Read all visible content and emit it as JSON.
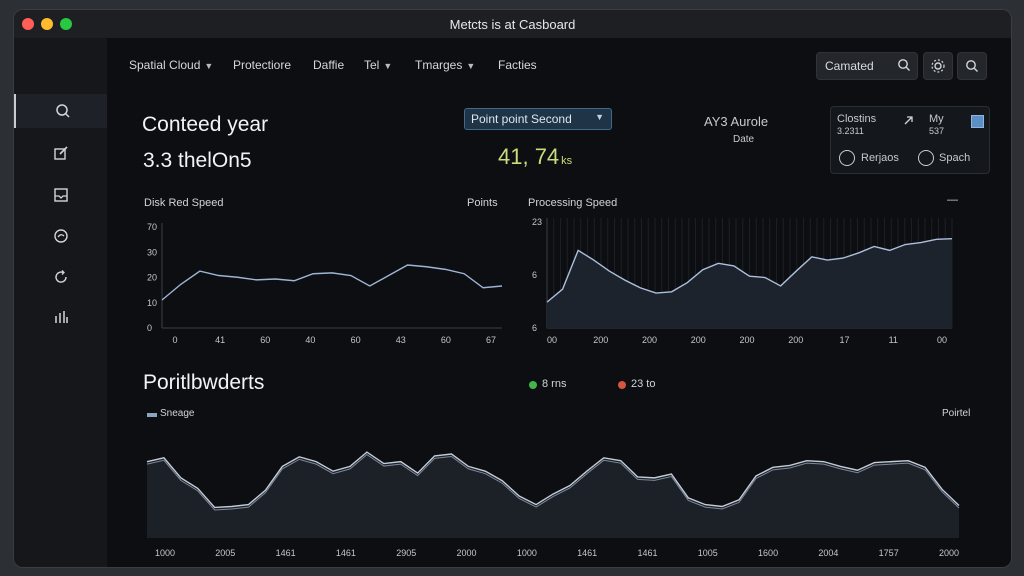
{
  "window": {
    "title": "Metcts is at Casboard",
    "controls": [
      {
        "name": "close",
        "color": "#ff5f57"
      },
      {
        "name": "minimize",
        "color": "#febc2e"
      },
      {
        "name": "maximize",
        "color": "#28c840"
      }
    ]
  },
  "sidebar": {
    "items": [
      {
        "name": "sidebar-item-search",
        "icon": "search-icon"
      },
      {
        "name": "sidebar-item-edit",
        "icon": "edit-icon"
      },
      {
        "name": "sidebar-item-inbox",
        "icon": "inbox-icon"
      },
      {
        "name": "sidebar-item-target",
        "icon": "target-icon"
      },
      {
        "name": "sidebar-item-refresh",
        "icon": "refresh-icon"
      },
      {
        "name": "sidebar-item-stats",
        "icon": "bar-chart-icon"
      }
    ]
  },
  "nav": {
    "items": [
      {
        "label": "Spatial Cloud",
        "dropdown": true
      },
      {
        "label": "Protectiore",
        "dropdown": false
      },
      {
        "label": "Daffie",
        "dropdown": false
      },
      {
        "label": "Tel",
        "dropdown": true
      },
      {
        "label": "Tmarges",
        "dropdown": true
      },
      {
        "label": "Facties",
        "dropdown": false
      }
    ],
    "search_value": "Camated",
    "icons": [
      "search-icon",
      "settings-icon",
      "search-icon"
    ]
  },
  "summary": {
    "heading": "Conteed year",
    "value": "3.3 thelOn5",
    "select_value": "Point point Second",
    "green_value": "41, 74",
    "green_unit": "ks",
    "aux_title": "AY3 Aurole",
    "aux_sub": "Date",
    "accent_green": "#c9dd7a"
  },
  "panel": {
    "label_a": "Clostins",
    "value_a": "3.2311",
    "label_b": "My",
    "value_b": "537",
    "radio_a": "Rerjaos",
    "radio_b": "Spach"
  },
  "chart_data": [
    {
      "type": "line",
      "title": "Disk Red Speed",
      "legend": "Points",
      "yticks": [
        "70",
        "30",
        "20",
        "10",
        "0"
      ],
      "xticks": [
        "0",
        "41",
        "60",
        "40",
        "60",
        "43",
        "60",
        "67"
      ],
      "color": "#9fb4d6",
      "values": [
        3.2,
        5,
        6.5,
        6,
        5.8,
        5.5,
        5.6,
        5.4,
        6.2,
        6.3,
        6,
        4.8,
        6,
        7.2,
        7,
        6.7,
        6.2,
        4.6,
        4.8
      ]
    },
    {
      "type": "area",
      "title": "Processing Speed",
      "yticks": [
        "23",
        "6",
        "6"
      ],
      "xticks": [
        "00",
        "200",
        "200",
        "200",
        "200",
        "200",
        "17",
        "11",
        "00"
      ],
      "color": "#aebfdc",
      "values": [
        4,
        6,
        12,
        10.5,
        8.8,
        7.4,
        6.2,
        5.4,
        5.6,
        7,
        9,
        10,
        9.6,
        8,
        7.8,
        6.5,
        8.8,
        11,
        10.5,
        10.8,
        11.6,
        12.6,
        12,
        12.9,
        13.2,
        13.7,
        13.8
      ]
    },
    {
      "type": "area",
      "title": "Poritlbwderts",
      "legend": "Sneage",
      "legend_right": "Poirtel",
      "legend_items": [
        {
          "label": "8 rns",
          "color": "#42b44a"
        },
        {
          "label": "23 to",
          "color": "#d45540"
        }
      ],
      "xticks": [
        "1000",
        "2005",
        "1461",
        "1461",
        "2905",
        "2000",
        "1000",
        "1461",
        "1461",
        "1005",
        "1600",
        "2004",
        "1757",
        "2000"
      ],
      "color": "#c3ccd8",
      "values": [
        8,
        8.4,
        6.3,
        5.2,
        3.2,
        3.3,
        3.5,
        5,
        7.5,
        8.5,
        8,
        7,
        7.5,
        9,
        7.8,
        8,
        6.8,
        8.6,
        8.8,
        7.5,
        7,
        6,
        4.4,
        3.5,
        4.6,
        5.5,
        7,
        8.4,
        8.1,
        6.4,
        6.3,
        6.7,
        4.2,
        3.5,
        3.3,
        4,
        6.5,
        7.4,
        7.6,
        8.1,
        8,
        7.5,
        7.1,
        7.9,
        8,
        8.1,
        7.4,
        5.1,
        3.4
      ]
    }
  ]
}
